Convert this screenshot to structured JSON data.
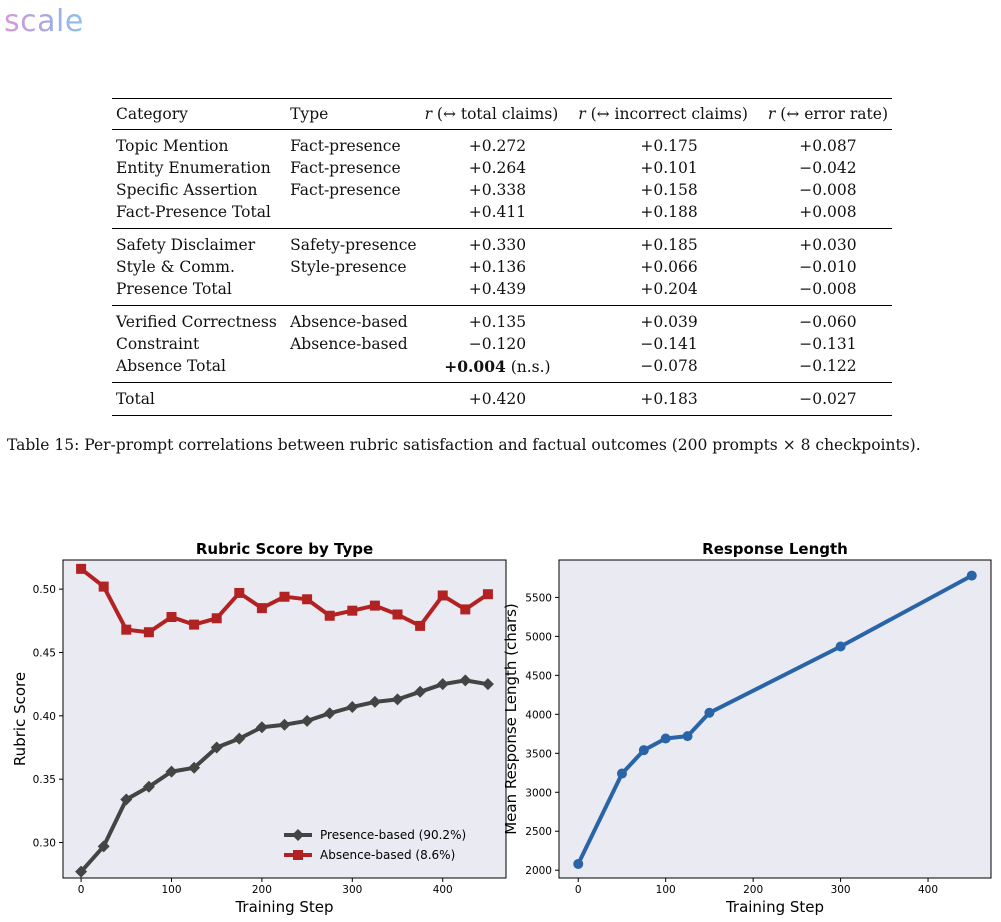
{
  "logo": "scale",
  "table": {
    "headers": [
      "Category",
      "Type",
      "r (↔ total claims)",
      "r (↔ incorrect claims)",
      "r (↔ error rate)"
    ],
    "groups": [
      [
        {
          "cat": "Topic Mention",
          "type": "Fact-presence",
          "total": "+0.272",
          "inc": "+0.175",
          "err": "+0.087"
        },
        {
          "cat": "Entity Enumeration",
          "type": "Fact-presence",
          "total": "+0.264",
          "inc": "+0.101",
          "err": "−0.042"
        },
        {
          "cat": "Specific Assertion",
          "type": "Fact-presence",
          "total": "+0.338",
          "inc": "+0.158",
          "err": "−0.008"
        },
        {
          "cat": "Fact-Presence Total",
          "type": "",
          "total": "+0.411",
          "inc": "+0.188",
          "err": "+0.008"
        }
      ],
      [
        {
          "cat": "Safety Disclaimer",
          "type": "Safety-presence",
          "total": "+0.330",
          "inc": "+0.185",
          "err": "+0.030"
        },
        {
          "cat": "Style & Comm.",
          "type": "Style-presence",
          "total": "+0.136",
          "inc": "+0.066",
          "err": "−0.010"
        },
        {
          "cat": "Presence Total",
          "type": "",
          "total": "+0.439",
          "inc": "+0.204",
          "err": "−0.008"
        }
      ],
      [
        {
          "cat": "Verified Correctness",
          "type": "Absence-based",
          "total": "+0.135",
          "inc": "+0.039",
          "err": "−0.060"
        },
        {
          "cat": "Constraint",
          "type": "Absence-based",
          "total": "−0.120",
          "inc": "−0.141",
          "err": "−0.131"
        },
        {
          "cat": "Absence Total",
          "type": "",
          "total": "+0.004",
          "total_note": " (n.s.)",
          "inc": "−0.078",
          "err": "−0.122"
        }
      ],
      [
        {
          "cat": "Total",
          "type": "",
          "total": "+0.420",
          "inc": "+0.183",
          "err": "−0.027"
        }
      ]
    ]
  },
  "caption": "Table 15: Per-prompt correlations between rubric satisfaction and factual outcomes (200 prompts × 8 checkpoints).",
  "chart_data": [
    {
      "type": "line",
      "title": "Rubric Score by Type",
      "xlabel": "Training Step",
      "ylabel": "Rubric Score",
      "xlim": [
        -20,
        470
      ],
      "ylim": [
        0.272,
        0.523
      ],
      "xticks": [
        0,
        100,
        200,
        300,
        400
      ],
      "yticks": [
        0.3,
        0.35,
        0.4,
        0.45,
        0.5
      ],
      "grid": false,
      "legend": "lower-right",
      "series": [
        {
          "name": "Presence-based (90.2%)",
          "color": "#444444",
          "marker": "diamond",
          "x": [
            0,
            25,
            50,
            75,
            100,
            125,
            150,
            175,
            200,
            225,
            250,
            275,
            300,
            325,
            350,
            375,
            400,
            425,
            450
          ],
          "y": [
            0.277,
            0.297,
            0.334,
            0.344,
            0.356,
            0.359,
            0.375,
            0.382,
            0.391,
            0.393,
            0.396,
            0.402,
            0.407,
            0.411,
            0.413,
            0.419,
            0.425,
            0.428,
            0.425
          ]
        },
        {
          "name": "Absence-based (8.6%)",
          "color": "#b22222",
          "marker": "square",
          "x": [
            0,
            25,
            50,
            75,
            100,
            125,
            150,
            175,
            200,
            225,
            250,
            275,
            300,
            325,
            350,
            375,
            400,
            425,
            450
          ],
          "y": [
            0.516,
            0.502,
            0.468,
            0.466,
            0.478,
            0.472,
            0.477,
            0.497,
            0.485,
            0.494,
            0.492,
            0.479,
            0.483,
            0.487,
            0.48,
            0.471,
            0.495,
            0.484,
            0.496
          ]
        }
      ]
    },
    {
      "type": "line",
      "title": "Response Length",
      "xlabel": "Training Step",
      "ylabel": "Mean Response Length (chars)",
      "xlim": [
        -22,
        472
      ],
      "ylim": [
        1900,
        5980
      ],
      "xticks": [
        0,
        100,
        200,
        300,
        400
      ],
      "yticks": [
        2000,
        2500,
        3000,
        3500,
        4000,
        4500,
        5000,
        5500
      ],
      "grid": false,
      "series": [
        {
          "name": "",
          "color": "#2a64a8",
          "marker": "circle",
          "x": [
            0,
            50,
            75,
            100,
            125,
            150,
            300,
            450
          ],
          "y": [
            2080,
            3240,
            3540,
            3690,
            3720,
            4020,
            4870,
            5780
          ]
        }
      ]
    }
  ]
}
